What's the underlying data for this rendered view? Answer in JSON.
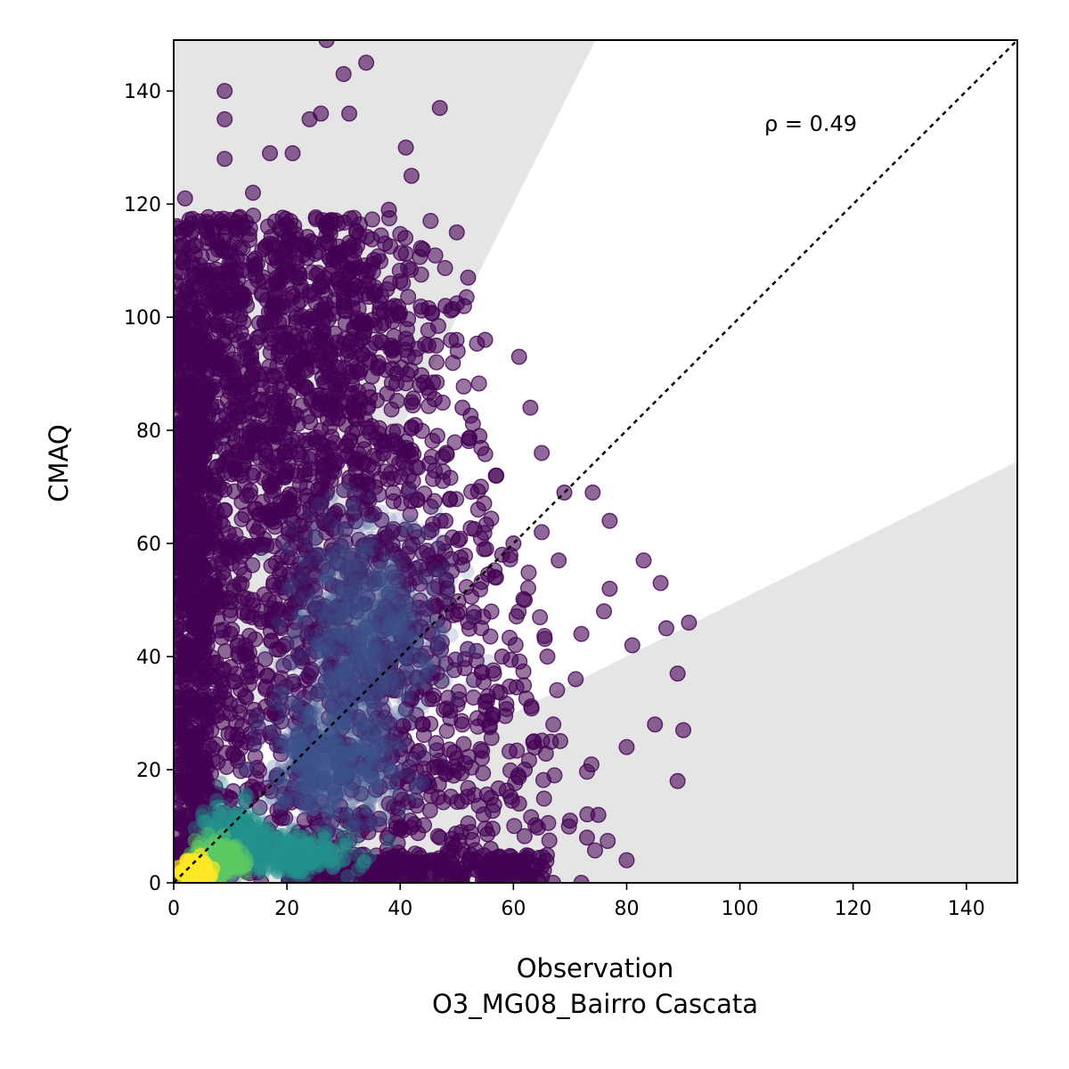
{
  "chart_data": {
    "type": "scatter",
    "title": "",
    "xlabel": "Observation",
    "xlabel_sub": "O3_MG08_Bairro Cascata",
    "ylabel": "CMAQ",
    "xlim": [
      0,
      149
    ],
    "ylim": [
      0,
      149
    ],
    "xticks": [
      0,
      20,
      40,
      60,
      80,
      100,
      120,
      140
    ],
    "yticks": [
      0,
      20,
      40,
      60,
      80,
      100,
      120,
      140
    ],
    "annotation": "ρ = 0.49",
    "reference_line": "1:1",
    "shaded_region": "outside factor-of-2 of the 1:1 line",
    "grid": false,
    "colormap": "viridis (density)",
    "colors": {
      "low_density": "#440154",
      "mid_low": "#3b528b",
      "mid": "#21918c",
      "mid_high": "#5ec962",
      "high_density": "#fde725",
      "shade": "#e5e5e5"
    },
    "sample_points": [
      [
        2,
        121
      ],
      [
        9,
        140
      ],
      [
        9,
        135
      ],
      [
        27,
        149
      ],
      [
        30,
        143
      ],
      [
        34,
        145
      ],
      [
        26,
        136
      ],
      [
        31,
        136
      ],
      [
        24,
        135
      ],
      [
        41,
        130
      ],
      [
        47,
        137
      ],
      [
        9,
        128
      ],
      [
        17,
        129
      ],
      [
        21,
        129
      ],
      [
        42,
        125
      ],
      [
        50,
        115
      ],
      [
        38,
        119
      ],
      [
        52,
        107
      ],
      [
        55,
        96
      ],
      [
        61,
        93
      ],
      [
        63,
        84
      ],
      [
        65,
        76
      ],
      [
        69,
        69
      ],
      [
        74,
        69
      ],
      [
        77,
        64
      ],
      [
        83,
        57
      ],
      [
        86,
        53
      ],
      [
        91,
        46
      ],
      [
        87,
        45
      ],
      [
        81,
        42
      ],
      [
        89,
        37
      ],
      [
        90,
        27
      ],
      [
        89,
        18
      ],
      [
        85,
        28
      ],
      [
        80,
        24
      ],
      [
        80,
        4
      ],
      [
        75,
        12
      ],
      [
        73,
        8
      ],
      [
        70,
        11
      ],
      [
        71,
        36
      ],
      [
        76,
        48
      ],
      [
        77,
        52
      ],
      [
        72,
        44
      ],
      [
        68,
        57
      ],
      [
        65,
        62
      ],
      [
        60,
        60
      ],
      [
        58,
        58
      ],
      [
        66,
        40
      ],
      [
        62,
        20
      ],
      [
        61,
        14
      ],
      [
        56,
        6
      ],
      [
        60,
        4
      ],
      [
        72,
        0
      ],
      [
        67,
        0
      ],
      [
        5,
        94
      ],
      [
        3,
        85
      ],
      [
        4,
        74
      ],
      [
        7,
        60
      ],
      [
        2,
        40
      ],
      [
        5,
        33
      ],
      [
        12,
        88
      ],
      [
        16,
        99
      ],
      [
        22,
        108
      ],
      [
        30,
        104
      ],
      [
        36,
        91
      ],
      [
        44,
        112
      ],
      [
        48,
        102
      ],
      [
        40,
        77
      ],
      [
        35,
        65
      ],
      [
        28,
        58
      ],
      [
        46,
        52
      ],
      [
        53,
        47
      ],
      [
        24,
        40
      ],
      [
        32,
        33
      ],
      [
        44,
        28
      ],
      [
        50,
        22
      ],
      [
        38,
        14
      ],
      [
        20,
        68
      ],
      [
        14,
        50
      ],
      [
        10,
        44
      ],
      [
        18,
        30
      ],
      [
        55,
        32
      ],
      [
        58,
        40
      ],
      [
        48,
        64
      ],
      [
        57,
        72
      ],
      [
        62,
        50
      ],
      [
        42,
        85
      ],
      [
        26,
        80
      ],
      [
        12,
        72
      ],
      [
        8,
        104
      ],
      [
        6,
        114
      ],
      [
        14,
        122
      ],
      [
        19,
        111
      ],
      [
        33,
        96
      ],
      [
        39,
        102
      ],
      [
        45,
        95
      ],
      [
        51,
        84
      ],
      [
        54,
        79
      ],
      [
        36,
        42
      ],
      [
        29,
        25
      ],
      [
        47,
        8
      ]
    ]
  }
}
